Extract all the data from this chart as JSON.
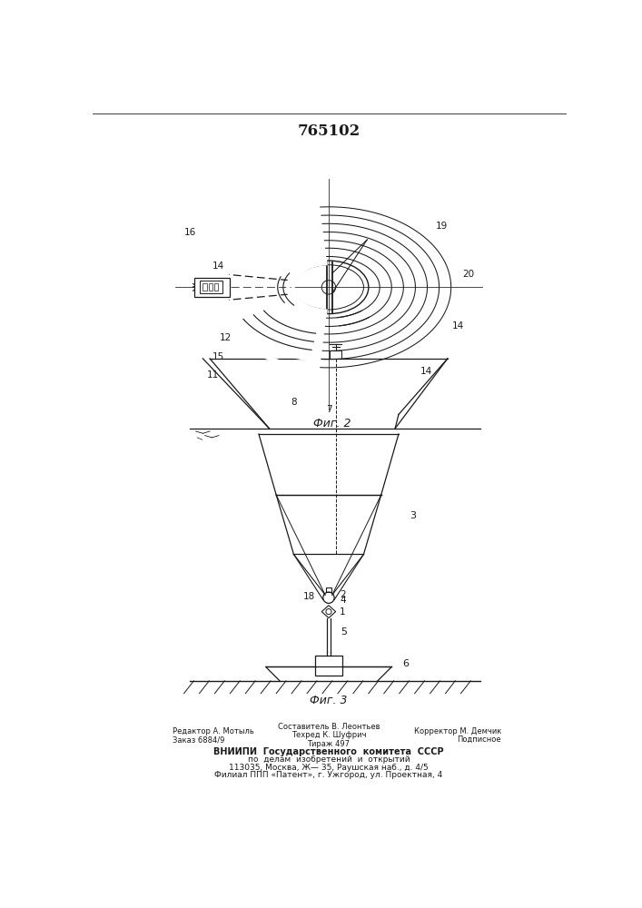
{
  "title": "765102",
  "fig2_caption": "Фиг. 2",
  "fig3_caption": "Фиг. 3",
  "footer_col1_line1": "Редактор А. Мотыль",
  "footer_col1_line2": "Заказ 6884/9",
  "footer_col2_line1": "Составитель В. Леонтьев",
  "footer_col2_line2": "Техред К. Шуфрич",
  "footer_col2_line3": "Тираж 497",
  "footer_col3_line1": "Корректор М. Демчик",
  "footer_col3_line2": "Подписное",
  "footer_bold1": "ВНИИПИ  Государственного  комитета  СССР",
  "footer_line4": "по  делам  изобретений  и  открытий",
  "footer_line5": "113035, Москва, Ж— 35, Раушская наб., д. 4/5",
  "footer_line6": "Филиал ППП «Патент», г. Ужгород, ул. Проектная, 4",
  "bg_color": "#ffffff",
  "line_color": "#1a1a1a"
}
